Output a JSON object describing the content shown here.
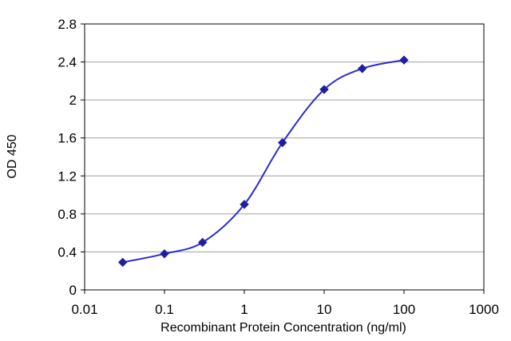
{
  "chart_data": {
    "type": "line",
    "title": "",
    "xlabel": "Recombinant Protein Concentration (ng/ml)",
    "ylabel": "OD 450",
    "x_scale": "log",
    "xlim": [
      0.01,
      1000
    ],
    "ylim": [
      0,
      2.8
    ],
    "x_ticks": [
      "0.01",
      "0.1",
      "1",
      "10",
      "100",
      "1000"
    ],
    "y_ticks": [
      "0",
      "0.4",
      "0.8",
      "1.2",
      "1.6",
      "2",
      "2.4",
      "2.8"
    ],
    "grid": "horizontal",
    "series": [
      {
        "x": [
          0.03,
          0.1,
          0.3,
          1,
          3,
          10,
          30,
          100
        ],
        "y": [
          0.29,
          0.38,
          0.5,
          0.9,
          1.55,
          2.11,
          2.33,
          2.42
        ],
        "color": "#2b2bd6"
      }
    ],
    "colors": {
      "line": "#2b2bd6",
      "marker": "#1f1f9e",
      "grid": "#a0a0a0"
    }
  }
}
